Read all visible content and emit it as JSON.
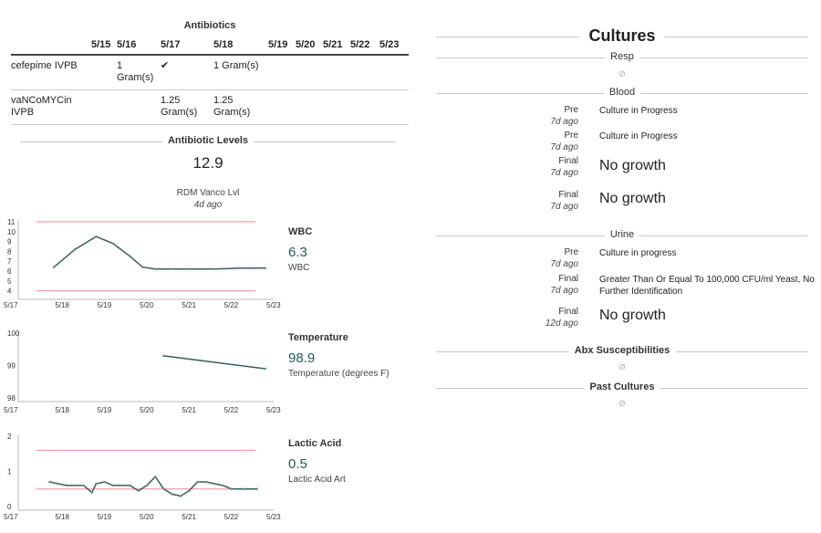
{
  "antibiotics": {
    "title": "Antibiotics",
    "dates": [
      "5/15",
      "5/16",
      "5/17",
      "5/18",
      "5/19",
      "5/20",
      "5/21",
      "5/22",
      "5/23"
    ],
    "rows": [
      {
        "name": "cefepime IVPB",
        "cells": [
          "",
          "1 Gram(s)",
          "✔",
          "1 Gram(s)",
          "",
          "",
          "",
          "",
          ""
        ]
      },
      {
        "name": "vaNCoMYCin IVPB",
        "cells": [
          "",
          "",
          "1.25 Gram(s)",
          "1.25 Gram(s)",
          "",
          "",
          "",
          "",
          ""
        ]
      }
    ]
  },
  "levels": {
    "title": "Antibiotic Levels",
    "value": "12.9",
    "label": "RDM Vanco Lvl",
    "ago": "4d ago"
  },
  "charts": [
    {
      "title": "WBC",
      "value": "6.3",
      "subtitle": "WBC",
      "line_color": "#355f5b",
      "ref_color": "#f0a0a8",
      "chart_data": {
        "type": "line",
        "x_ticks": [
          "5/17",
          "5/18",
          "5/19",
          "5/20",
          "5/21",
          "5/22",
          "5/23"
        ],
        "xlim": [
          0,
          6
        ],
        "y_ticks": [
          4,
          5,
          6,
          7,
          8,
          9,
          10,
          11
        ],
        "ylim": [
          3.5,
          11
        ],
        "ref_lines": [
          11,
          4
        ],
        "series": [
          {
            "x": [
              0.8,
              1.3,
              1.8,
              2.2,
              2.6,
              2.9,
              3.2,
              3.6,
              4.0,
              4.6,
              5.2,
              5.8
            ],
            "y": [
              6.4,
              8.2,
              9.5,
              8.8,
              7.5,
              6.4,
              6.2,
              6.2,
              6.2,
              6.2,
              6.3,
              6.3
            ]
          }
        ]
      }
    },
    {
      "title": "Temperature",
      "value": "98.9",
      "subtitle": "Temperature (degrees F)",
      "line_color": "#355f5b",
      "ref_color": "#f0a0a8",
      "chart_data": {
        "type": "line",
        "x_ticks": [
          "5/17",
          "5/18",
          "5/19",
          "5/20",
          "5/21",
          "5/22",
          "5/23"
        ],
        "xlim": [
          0,
          6
        ],
        "y_ticks": [
          98,
          99,
          100
        ],
        "ylim": [
          98,
          100
        ],
        "ref_lines": [],
        "series": [
          {
            "x": [
              3.4,
              5.8
            ],
            "y": [
              99.3,
              98.9
            ]
          }
        ]
      }
    },
    {
      "title": "Lactic Acid",
      "value": "0.5",
      "subtitle": "Lactic Acid Art",
      "line_color": "#355f5b",
      "ref_color": "#f0a0a8",
      "chart_data": {
        "type": "line",
        "x_ticks": [
          "5/17",
          "5/18",
          "5/19",
          "5/20",
          "5/21",
          "5/22",
          "5/23"
        ],
        "xlim": [
          0,
          6
        ],
        "y_ticks": [
          0,
          1,
          2
        ],
        "ylim": [
          0,
          2
        ],
        "ref_lines": [
          1.6,
          0.5
        ],
        "series": [
          {
            "x": [
              0.7,
              0.9,
              1.1,
              1.3,
              1.5,
              1.7,
              1.8,
              2.0,
              2.2,
              2.4,
              2.6,
              2.8,
              3.0,
              3.2,
              3.4,
              3.6,
              3.8,
              4.0,
              4.2,
              4.4,
              4.6,
              4.8,
              5.0,
              5.3,
              5.6
            ],
            "y": [
              0.7,
              0.65,
              0.6,
              0.6,
              0.6,
              0.4,
              0.65,
              0.7,
              0.6,
              0.6,
              0.6,
              0.45,
              0.6,
              0.85,
              0.5,
              0.35,
              0.3,
              0.45,
              0.7,
              0.7,
              0.65,
              0.6,
              0.5,
              0.5,
              0.5
            ]
          }
        ]
      }
    }
  ],
  "cultures": {
    "title": "Cultures",
    "empty_icon": "⊘",
    "sections": [
      {
        "name": "Resp",
        "entries": []
      },
      {
        "name": "Blood",
        "entries": [
          {
            "status": "Pre",
            "ago": "7d ago",
            "text": "Culture in Progress",
            "big": false
          },
          {
            "status": "Pre",
            "ago": "7d ago",
            "text": "Culture in Progress",
            "big": false
          },
          {
            "status": "Final",
            "ago": "7d ago",
            "text": "No growth",
            "big": true
          },
          {
            "status": "Final",
            "ago": "7d ago",
            "text": "No growth",
            "big": true
          }
        ]
      },
      {
        "name": "Urine",
        "entries": [
          {
            "status": "Pre",
            "ago": "7d ago",
            "text": "Culture in progress",
            "big": false
          },
          {
            "status": "Final",
            "ago": "7d ago",
            "text": "Greater Than Or Equal To 100,000 CFU/ml Yeast, No Further Identification",
            "big": false
          },
          {
            "status": "Final",
            "ago": "12d ago",
            "text": "No growth",
            "big": true
          }
        ]
      },
      {
        "name": "Abx Susceptibilities",
        "bold": true,
        "entries": []
      },
      {
        "name": "Past Cultures",
        "bold": true,
        "entries": []
      }
    ]
  }
}
